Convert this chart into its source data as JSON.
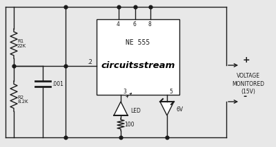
{
  "bg_color": "#e8e8e8",
  "line_color": "#1a1a1a",
  "ne555_label": "NE 555",
  "brand_label": "circuitsstream",
  "voltage_monitored": "VOLTAGE\nMONITORED\n(15V)"
}
